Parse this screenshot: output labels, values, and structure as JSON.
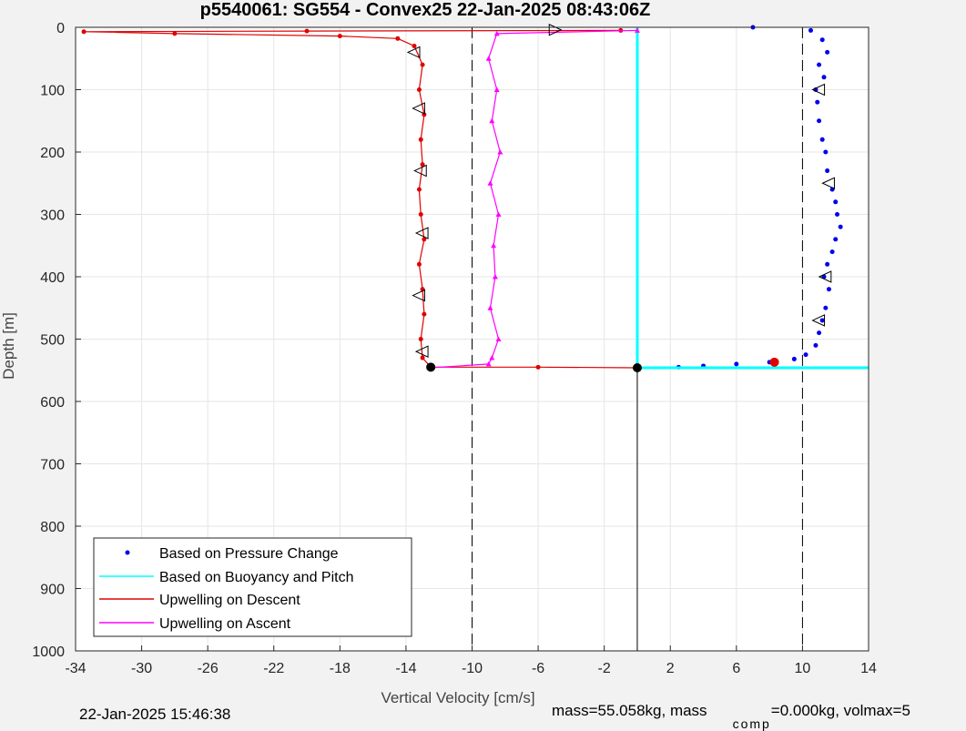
{
  "chart_data": {
    "type": "scatter",
    "title": "p5540061: SG554 - Convex25 22-Jan-2025 08:43:06Z",
    "xlabel": "Vertical Velocity [cm/s]",
    "ylabel": "Depth [m]",
    "xlim": [
      -34,
      14
    ],
    "ylim": [
      0,
      1000
    ],
    "y_reversed": true,
    "grid": true,
    "x_ticks": [
      -34,
      -30,
      -26,
      -22,
      -18,
      -14,
      -10,
      -6,
      -2,
      2,
      6,
      10,
      14
    ],
    "y_ticks": [
      0,
      100,
      200,
      300,
      400,
      500,
      600,
      700,
      800,
      900,
      1000
    ],
    "reference_lines": {
      "dashed_x": [
        -10,
        10
      ],
      "solid_x": [
        0
      ]
    },
    "max_depth": 546,
    "legend_position": "bottom-left",
    "legend": [
      {
        "label": "Based on Pressure Change",
        "color": "#0000ee",
        "style": "dot"
      },
      {
        "label": "Based on Buoyancy and Pitch",
        "color": "#00ffff",
        "style": "line"
      },
      {
        "label": "Upwelling on Descent",
        "color": "#e00000",
        "style": "line"
      },
      {
        "label": "Upwelling on Ascent",
        "color": "#ff00ff",
        "style": "line"
      }
    ],
    "series": [
      {
        "name": "Based on Pressure Change",
        "color": "#0000ee",
        "marker": "dot",
        "points": [
          [
            7.0,
            0
          ],
          [
            10.5,
            5
          ],
          [
            11.2,
            20
          ],
          [
            11.5,
            40
          ],
          [
            11.0,
            60
          ],
          [
            11.3,
            80
          ],
          [
            10.8,
            100
          ],
          [
            10.9,
            120
          ],
          [
            11.0,
            150
          ],
          [
            11.2,
            180
          ],
          [
            11.4,
            200
          ],
          [
            11.5,
            230
          ],
          [
            11.8,
            260
          ],
          [
            12.0,
            280
          ],
          [
            12.1,
            300
          ],
          [
            12.3,
            320
          ],
          [
            12.0,
            340
          ],
          [
            11.8,
            360
          ],
          [
            11.5,
            380
          ],
          [
            11.3,
            400
          ],
          [
            11.6,
            420
          ],
          [
            11.4,
            450
          ],
          [
            11.2,
            470
          ],
          [
            11.0,
            490
          ],
          [
            10.8,
            510
          ],
          [
            10.2,
            525
          ],
          [
            9.5,
            532
          ],
          [
            8.0,
            537
          ],
          [
            6.0,
            540
          ],
          [
            4.0,
            543
          ],
          [
            2.5,
            545
          ]
        ]
      },
      {
        "name": "Based on Buoyancy and Pitch",
        "color": "#00ffff",
        "marker": "line",
        "points": [
          [
            0,
            0
          ],
          [
            0,
            546
          ],
          [
            14,
            546
          ]
        ]
      },
      {
        "name": "Upwelling on Descent",
        "color": "#e00000",
        "marker": "dot-line",
        "points": [
          [
            -1,
            5
          ],
          [
            -20,
            6
          ],
          [
            -33.5,
            7
          ],
          [
            -28,
            10
          ],
          [
            -18,
            14
          ],
          [
            -14.5,
            18
          ],
          [
            -13.5,
            30
          ],
          [
            -13.0,
            60
          ],
          [
            -13.2,
            100
          ],
          [
            -12.9,
            140
          ],
          [
            -13.1,
            180
          ],
          [
            -13.0,
            220
          ],
          [
            -13.2,
            260
          ],
          [
            -13.1,
            300
          ],
          [
            -12.9,
            340
          ],
          [
            -13.2,
            380
          ],
          [
            -13.0,
            420
          ],
          [
            -12.9,
            460
          ],
          [
            -13.1,
            500
          ],
          [
            -13.0,
            530
          ],
          [
            -12.5,
            545
          ],
          [
            -6,
            545
          ],
          [
            0,
            546
          ]
        ]
      },
      {
        "name": "Upwelling on Ascent",
        "color": "#ff00ff",
        "marker": "triangle-line",
        "points": [
          [
            0,
            5
          ],
          [
            -8.5,
            10
          ],
          [
            -9.0,
            50
          ],
          [
            -8.5,
            100
          ],
          [
            -8.8,
            150
          ],
          [
            -8.3,
            200
          ],
          [
            -8.9,
            250
          ],
          [
            -8.4,
            300
          ],
          [
            -8.7,
            350
          ],
          [
            -8.6,
            400
          ],
          [
            -8.9,
            450
          ],
          [
            -8.4,
            500
          ],
          [
            -8.8,
            530
          ],
          [
            -9.0,
            540
          ],
          [
            -12.5,
            546
          ]
        ]
      }
    ],
    "direction_markers": [
      {
        "x": -13.5,
        "y": 40,
        "dir": "left"
      },
      {
        "x": -13.2,
        "y": 130,
        "dir": "left"
      },
      {
        "x": -13.1,
        "y": 230,
        "dir": "left"
      },
      {
        "x": -13.0,
        "y": 330,
        "dir": "left"
      },
      {
        "x": -13.2,
        "y": 430,
        "dir": "left"
      },
      {
        "x": -13.0,
        "y": 520,
        "dir": "left"
      },
      {
        "x": -5.0,
        "y": 4,
        "dir": "right"
      },
      {
        "x": 11.0,
        "y": 100,
        "dir": "left"
      },
      {
        "x": 11.6,
        "y": 250,
        "dir": "left"
      },
      {
        "x": 11.4,
        "y": 400,
        "dir": "left"
      },
      {
        "x": 11.0,
        "y": 470,
        "dir": "left"
      }
    ]
  },
  "footer": {
    "timestamp": "22-Jan-2025 15:46:38",
    "mass_text": "mass=55.058kg, mass",
    "comp_subscript": "comp",
    "mass_comp_text": "=0.000kg, volmax=5"
  }
}
